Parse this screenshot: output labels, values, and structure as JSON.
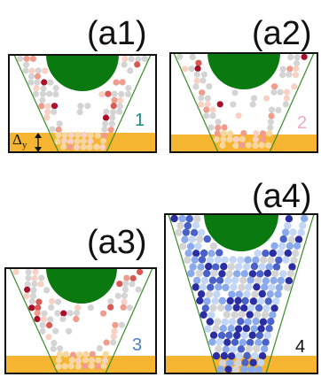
{
  "figure": {
    "panels": [
      {
        "id": "a1",
        "label": "(a1)",
        "number": "1",
        "number_color": "#1a8a82",
        "palette": "red"
      },
      {
        "id": "a2",
        "label": "(a2)",
        "number": "2",
        "number_color": "#f4a6c8",
        "palette": "red"
      },
      {
        "id": "a3",
        "label": "(a3)",
        "number": "3",
        "number_color": "#4a7fc8",
        "palette": "red"
      },
      {
        "id": "a4",
        "label": "(a4)",
        "number": "4",
        "number_color": "#111111",
        "palette": "blue"
      }
    ],
    "delta_label": "Δ",
    "delta_subscript": "y",
    "colors": {
      "obstacle": "#0a7a10",
      "floor": "#f5b530",
      "frame": "#111111",
      "funnel_wall": "#3a8a2a",
      "particle_grey": "#d4d4d4",
      "red_scale": [
        "#f8d0c4",
        "#ef9c8c",
        "#d65a52",
        "#a8102a"
      ],
      "blue_scale": [
        "#c4d6f6",
        "#8aaaec",
        "#4a62c8",
        "#2a2ea0"
      ]
    }
  }
}
